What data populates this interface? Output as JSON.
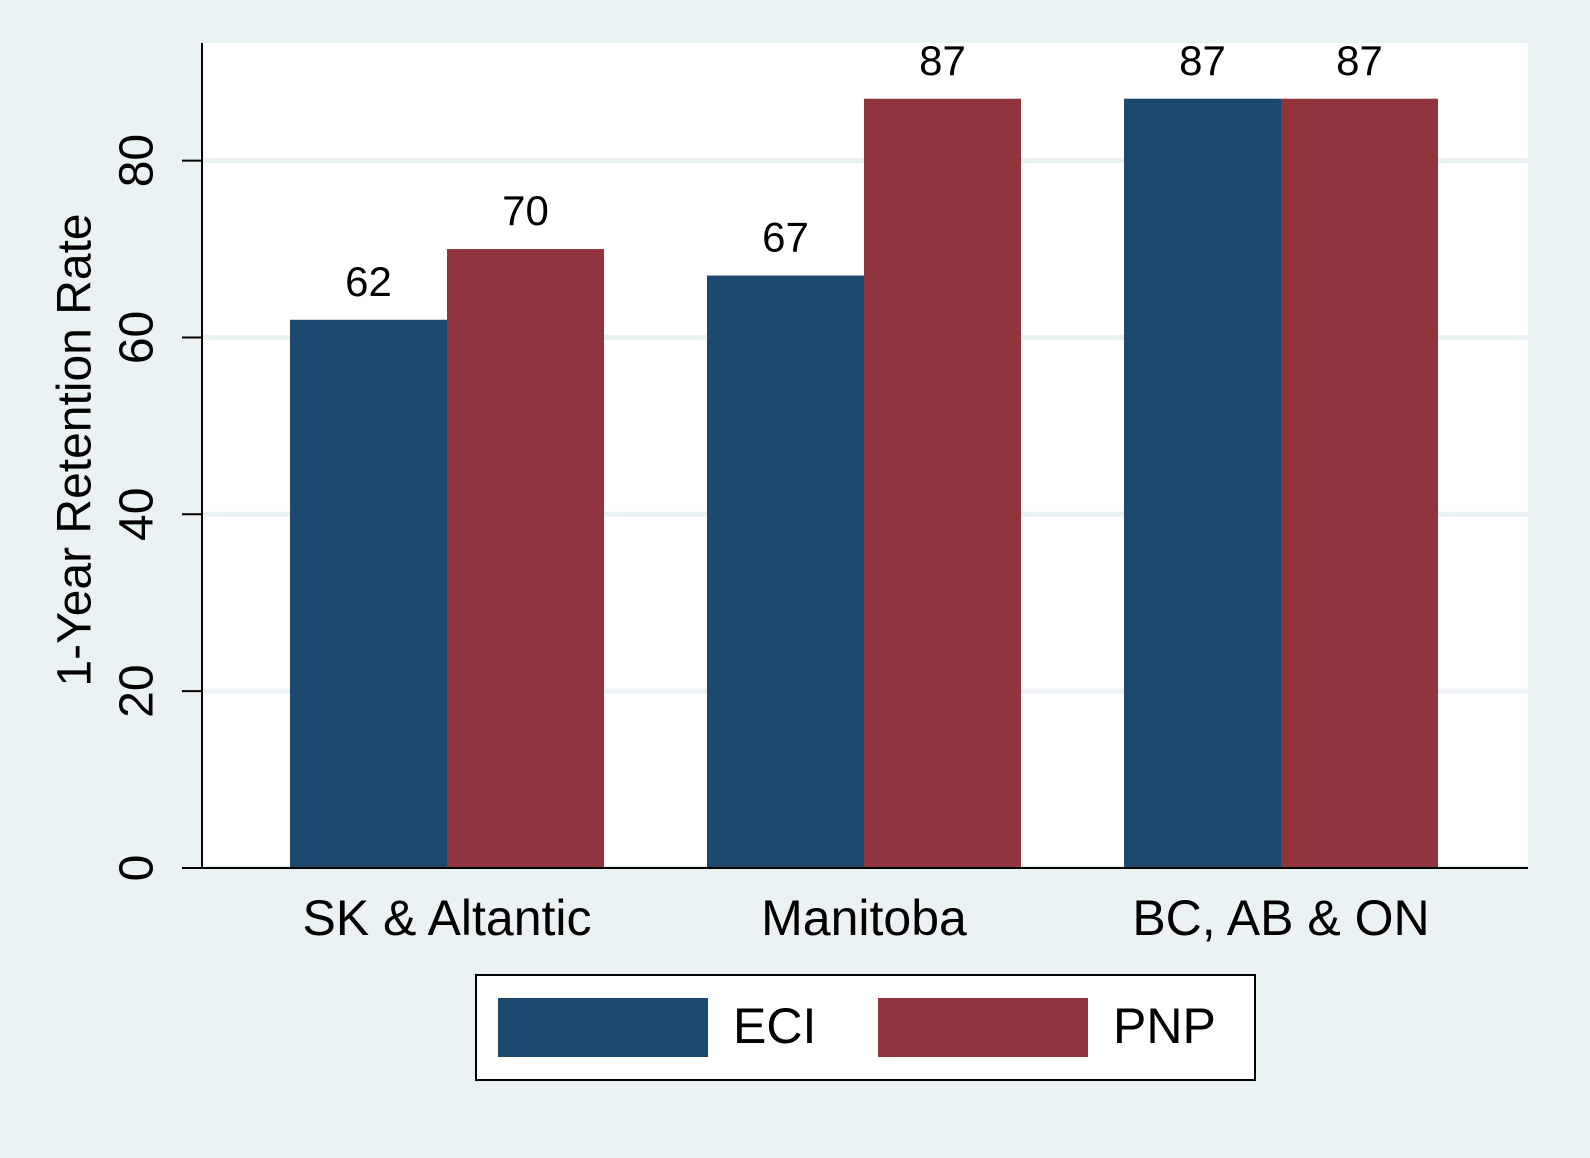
{
  "chart_data": {
    "type": "bar",
    "ylabel": "1-Year Retention Rate",
    "categories": [
      "SK & Altantic",
      "Manitoba",
      "BC, AB & ON"
    ],
    "series": [
      {
        "name": "ECI",
        "color": "#1c4870",
        "values": [
          62,
          67,
          87
        ]
      },
      {
        "name": "PNP",
        "color": "#90353d",
        "values": [
          70,
          87,
          87
        ]
      }
    ],
    "ylim": [
      0,
      93.3
    ],
    "yticks": [
      0,
      20,
      40,
      60,
      80
    ],
    "grid": true,
    "legend": "bottom"
  }
}
